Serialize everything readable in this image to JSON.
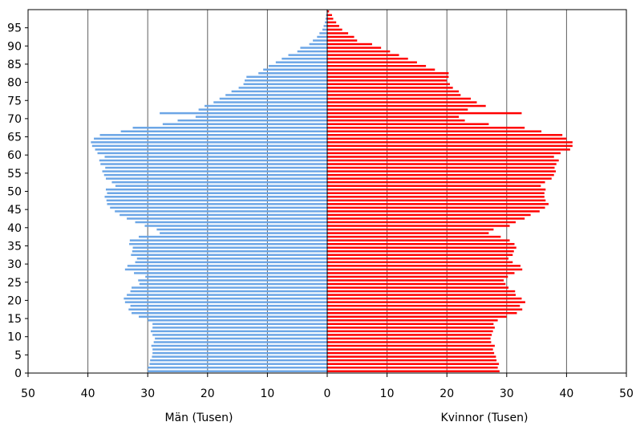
{
  "chart_data": {
    "type": "bar",
    "orientation": "horizontal-population-pyramid",
    "xlabel_left": "Män (Tusen)",
    "xlabel_right": "Kvinnor (Tusen)",
    "x_tick_labels": [
      "50",
      "40",
      "30",
      "20",
      "10",
      "0",
      "10",
      "20",
      "30",
      "40",
      "50"
    ],
    "x_range": [
      -50,
      50
    ],
    "y_range": [
      0,
      100
    ],
    "y_tick_values": [
      0,
      5,
      10,
      15,
      20,
      25,
      30,
      35,
      40,
      45,
      50,
      55,
      60,
      65,
      70,
      75,
      80,
      85,
      90,
      95
    ],
    "grid": "vertical",
    "colors": {
      "men": "#6ca6e6",
      "women": "#ff0000"
    },
    "ages": [
      0,
      1,
      2,
      3,
      4,
      5,
      6,
      7,
      8,
      9,
      10,
      11,
      12,
      13,
      14,
      15,
      16,
      17,
      18,
      19,
      20,
      21,
      22,
      23,
      24,
      25,
      26,
      27,
      28,
      29,
      30,
      31,
      32,
      33,
      34,
      35,
      36,
      37,
      38,
      39,
      40,
      41,
      42,
      43,
      44,
      45,
      46,
      47,
      48,
      49,
      50,
      51,
      52,
      53,
      54,
      55,
      56,
      57,
      58,
      59,
      60,
      61,
      62,
      63,
      64,
      65,
      66,
      67,
      68,
      69,
      70,
      71,
      72,
      73,
      74,
      75,
      76,
      77,
      78,
      79,
      80,
      81,
      82,
      83,
      84,
      85,
      86,
      87,
      88,
      89,
      90,
      91,
      92,
      93,
      94,
      95,
      96,
      97,
      98,
      99
    ],
    "series": [
      {
        "name": "Män (Tusen)",
        "values": [
          30.0,
          30.0,
          29.7,
          29.6,
          29.3,
          29.2,
          29.2,
          29.4,
          29.0,
          28.8,
          29.2,
          29.5,
          29.2,
          29.2,
          30.0,
          31.5,
          32.7,
          33.2,
          32.9,
          33.8,
          34.0,
          33.5,
          32.9,
          32.7,
          31.4,
          31.6,
          30.4,
          32.3,
          33.8,
          33.4,
          32.1,
          31.8,
          32.8,
          32.6,
          32.5,
          33.1,
          33.0,
          31.5,
          28.0,
          28.5,
          30.5,
          32.1,
          33.5,
          34.7,
          35.5,
          36.3,
          36.8,
          36.9,
          37.2,
          36.8,
          37.0,
          35.4,
          36.0,
          37.0,
          37.3,
          37.6,
          37.1,
          37.9,
          38.1,
          37.2,
          38.4,
          38.8,
          39.3,
          39.5,
          39.0,
          38.0,
          34.5,
          32.5,
          27.5,
          25.0,
          22.0,
          28.0,
          21.5,
          20.5,
          19.0,
          18.0,
          17.0,
          16.0,
          14.8,
          14.0,
          13.8,
          13.5,
          11.5,
          10.7,
          9.8,
          8.6,
          7.6,
          6.5,
          5.0,
          4.5,
          3.0,
          2.4,
          1.7,
          1.3,
          0.8,
          0.6,
          0.4,
          0.3,
          0.2,
          0.1
        ]
      },
      {
        "name": "Kvinnor (Tusen)",
        "values": [
          28.8,
          28.5,
          28.7,
          28.3,
          28.2,
          27.9,
          27.7,
          28.0,
          27.4,
          27.3,
          27.5,
          27.7,
          28.0,
          27.8,
          28.5,
          30.0,
          31.7,
          32.6,
          32.2,
          33.1,
          32.5,
          31.5,
          31.4,
          30.3,
          29.8,
          29.5,
          30.2,
          31.3,
          32.6,
          32.3,
          31.0,
          30.3,
          31.0,
          31.2,
          31.6,
          31.3,
          30.5,
          29.0,
          27.0,
          27.8,
          30.5,
          31.5,
          33.0,
          34.0,
          35.5,
          36.4,
          37.0,
          36.5,
          36.3,
          36.3,
          36.5,
          35.7,
          36.4,
          37.5,
          37.9,
          38.2,
          38.0,
          38.3,
          38.7,
          37.9,
          39.0,
          40.6,
          41.0,
          41.0,
          40.0,
          39.3,
          35.8,
          33.0,
          27.0,
          23.0,
          22.0,
          32.5,
          23.5,
          26.5,
          25.0,
          24.0,
          22.3,
          22.0,
          21.0,
          20.5,
          20.0,
          20.3,
          20.3,
          18.0,
          16.5,
          15.0,
          13.5,
          12.0,
          10.5,
          9.0,
          7.5,
          5.0,
          4.5,
          3.5,
          2.5,
          2.0,
          1.5,
          1.0,
          0.8,
          0.3
        ]
      }
    ]
  }
}
